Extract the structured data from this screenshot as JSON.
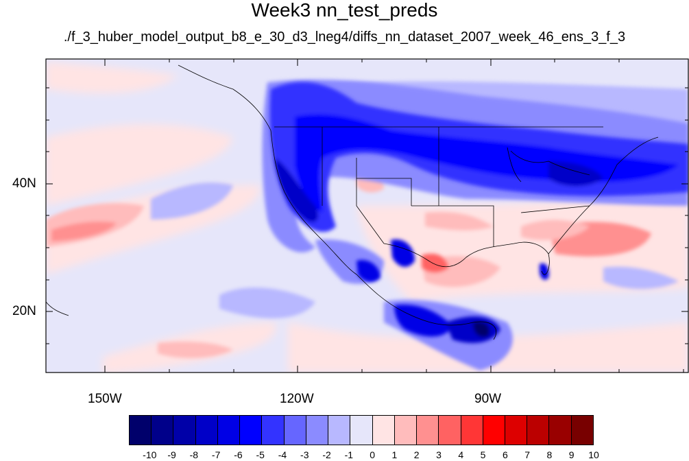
{
  "title": "Week3 nn_test_preds",
  "subtitle": "./f_3_huber_model_output_b8_e_30_d3_lneg4/diffs_nn_dataset_2007_week_46_ens_3_f_3",
  "axes": {
    "longitude_labels": [
      "150W",
      "120W",
      "90W"
    ],
    "latitude_labels": [
      "40N",
      "20N"
    ],
    "lon_range": [
      -159.5,
      -60
    ],
    "lat_range": [
      11,
      59.5
    ]
  },
  "colorbar": {
    "labels": [
      "-10",
      "-9",
      "-8",
      "-7",
      "-6",
      "-5",
      "-4",
      "-3",
      "-2",
      "-1",
      "0",
      "1",
      "2",
      "3",
      "4",
      "5",
      "6",
      "7",
      "8",
      "9",
      "10"
    ],
    "colors": [
      "#00006b",
      "#00008a",
      "#0000a8",
      "#0000c8",
      "#0000e6",
      "#0000ff",
      "#3333ff",
      "#6666ff",
      "#8b8bff",
      "#b8b8ff",
      "#e6e6fa",
      "#ffe4e4",
      "#ffbcbc",
      "#ff9090",
      "#ff6262",
      "#ff3636",
      "#ff0000",
      "#dd0000",
      "#bb0000",
      "#990000",
      "#780000"
    ]
  }
}
